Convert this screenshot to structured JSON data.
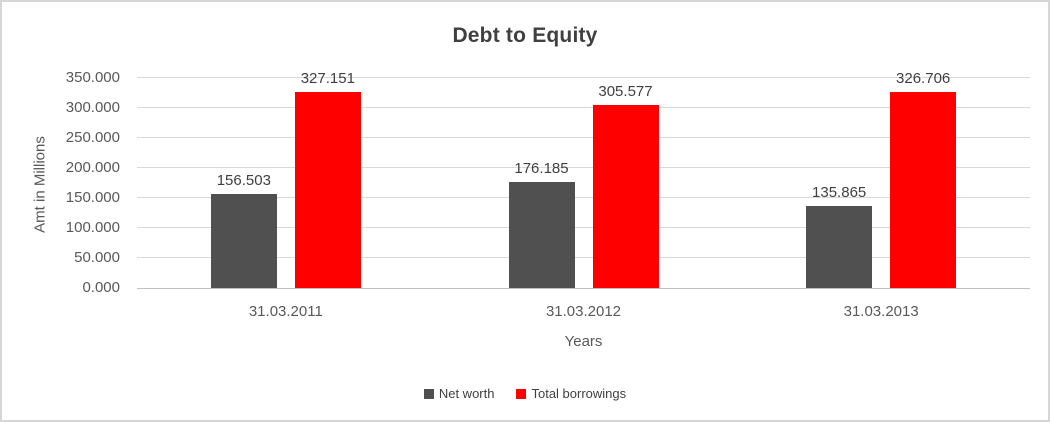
{
  "chart_data": {
    "type": "bar",
    "title": "Debt to Equity",
    "xlabel": "Years",
    "ylabel": "Amt in Millions",
    "categories": [
      "31.03.2011",
      "31.03.2012",
      "31.03.2013"
    ],
    "series": [
      {
        "name": "Net worth",
        "color": "#505050",
        "values": [
          156.503,
          176.185,
          135.865
        ],
        "value_labels": [
          "156.503",
          "176.185",
          "135.865"
        ]
      },
      {
        "name": "Total borrowings",
        "color": "#ff0000",
        "values": [
          327.151,
          305.577,
          326.706
        ],
        "value_labels": [
          "327.151",
          "305.577",
          "326.706"
        ]
      }
    ],
    "ylim": [
      0,
      350
    ],
    "ytick_interval": 50,
    "ytick_labels": [
      "0.000",
      "50.000",
      "100.000",
      "150.000",
      "200.000",
      "250.000",
      "300.000",
      "350.000"
    ],
    "grid": true,
    "legend_position": "bottom",
    "colors": {
      "title_text": "#404040",
      "axis_text": "#595959",
      "data_label_text": "#404040",
      "gridline": "#d9d9d9",
      "axis_line": "#c0c0c0",
      "frame_border": "#d6d6d6",
      "background": "#ffffff"
    }
  }
}
